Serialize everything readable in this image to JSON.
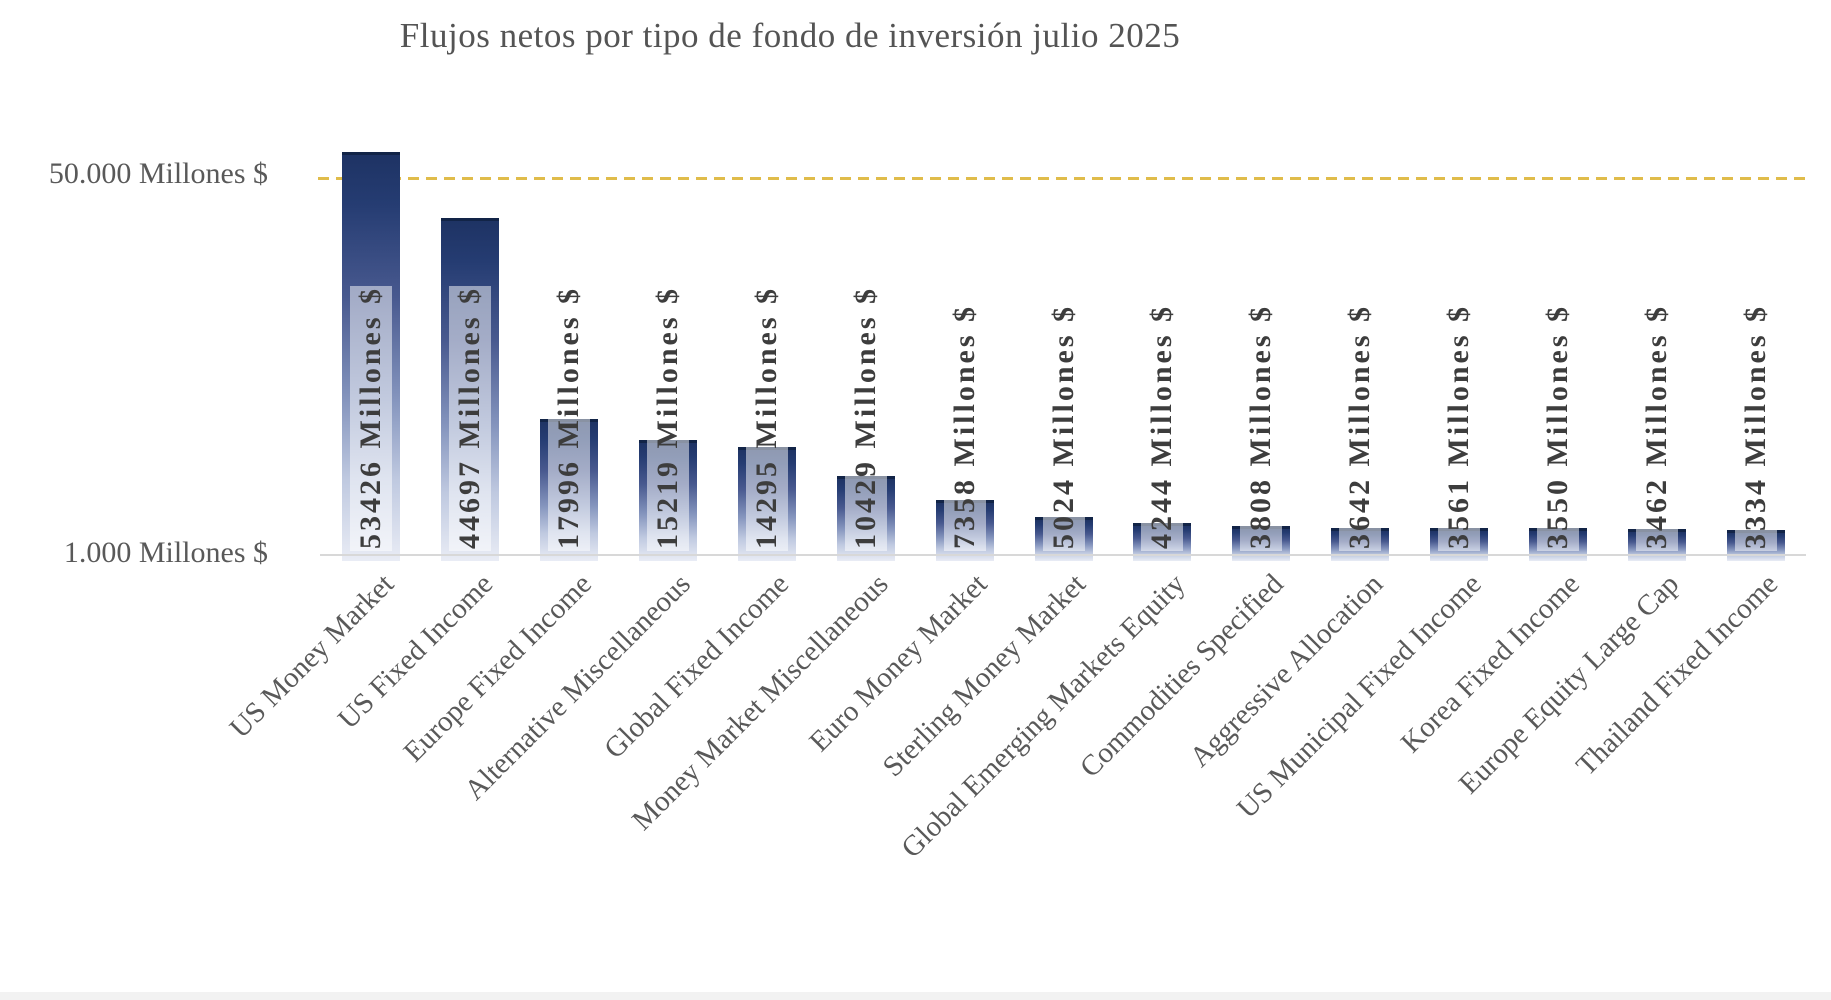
{
  "chart_data": {
    "type": "bar",
    "title": "Flujos netos por tipo de fondo de inversión julio 2025",
    "xlabel": "",
    "ylabel": "",
    "categories": [
      "US Money Market",
      "US Fixed Income",
      "Europe Fixed Income",
      "Alternative Miscellaneous",
      "Global Fixed Income",
      "Money Market Miscellaneous",
      "Euro Money Market",
      "Sterling Money Market",
      "Global Emerging Markets Equity",
      "Commodities Specified",
      "Aggressive Allocation",
      "US Municipal Fixed Income",
      "Korea Fixed Income",
      "Europe Equity Large Cap",
      "Thailand Fixed Income"
    ],
    "values": [
      53426,
      44697,
      17996,
      15219,
      14295,
      10429,
      7358,
      5024,
      4244,
      3808,
      3642,
      3561,
      3550,
      3462,
      3334
    ],
    "data_label_suffix": " Millones $",
    "data_labels": [
      "53426 Millones $",
      "44697 Millones $",
      "17996 Millones $",
      "15219 Millones $",
      "14295 Millones $",
      "10429 Millones $",
      "7358 Millones $",
      "5024 Millones $",
      "4244 Millones $",
      "3808 Millones $",
      "3642 Millones $",
      "3561 Millones $",
      "3550 Millones $",
      "3462 Millones $",
      "3334 Millones $"
    ],
    "y_axis": {
      "min": 0,
      "gridline_value": 50000,
      "gridline_style": "dashed",
      "tick_top_label": "50.000 Millones $",
      "tick_bottom_label": "1.000 Millones $"
    },
    "legend": "none",
    "grid": "single horizontal dashed line at 50000",
    "colors": {
      "bar_top": "#1e3364",
      "bar_bottom": "#e9ecf5",
      "gridline": "#e0bc4a",
      "axis_line": "#d8d8d8",
      "title_text": "#545454",
      "axis_text": "#595959",
      "data_label_text": "#3d3d3d",
      "background": "#ffffff"
    }
  }
}
